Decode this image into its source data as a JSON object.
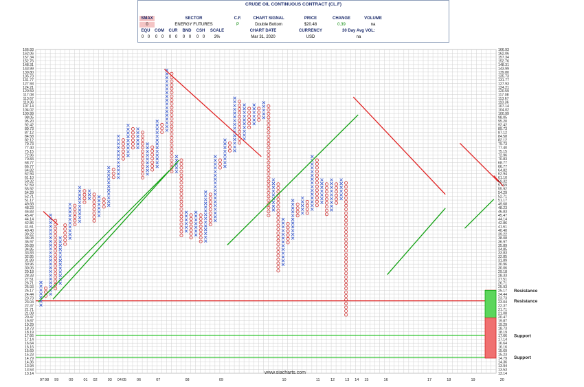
{
  "header": {
    "title": "CRUDE OIL CONTINUOUS CONTRACT (CL.F)",
    "smax_label": "SMAX",
    "smax_value": "0",
    "sector_label": "SECTOR",
    "sector_value": "ENERGY FUTURES",
    "cf_label": "C.F.",
    "cf_value": "P",
    "signal_label": "CHART SIGNAL",
    "signal_value": "Double Bottom",
    "price_label": "PRICE",
    "price_value": "$20.48",
    "change_label": "CHANGE",
    "change_value": "0.39",
    "volume_label": "VOLUME",
    "volume_value": "na",
    "equ_label": "EQU",
    "com_label": "COM",
    "cur_label": "CUR",
    "bnd_label": "BND",
    "csh_label": "CSH",
    "scale_label": "SCALE",
    "equ_value": "0",
    "com_value": "0",
    "cur_value": "0",
    "bnd_value": "0",
    "csh_value": "0",
    "scale_value": "3%",
    "extra_zeros": [
      "0",
      "0",
      "0",
      "0",
      "0"
    ],
    "date_label": "CHART DATE",
    "date_value": "Mar 31, 2020",
    "currency_label": "CURRENCY",
    "currency_value": "USD",
    "avgvol_label": "30 Day Avg VOL:",
    "avgvol_value": "na",
    "watermark": "www.siacharts.com"
  },
  "chart_data": {
    "type": "point-and-figure",
    "scale": "3% log",
    "y_ticks": [
      "166.93",
      "162.06",
      "157.34",
      "152.76",
      "148.31",
      "143.99",
      "139.80",
      "135.73",
      "131.77",
      "127.93",
      "124.21",
      "120.59",
      "117.08",
      "113.67",
      "110.36",
      "107.14",
      "104.02",
      "100.99",
      "98.05",
      "95.20",
      "92.42",
      "89.73",
      "87.12",
      "84.58",
      "82.12",
      "79.73",
      "77.40",
      "75.15",
      "72.96",
      "70.83",
      "68.77",
      "66.77",
      "64.82",
      "62.94",
      "61.10",
      "59.32",
      "57.59",
      "55.92",
      "54.29",
      "52.71",
      "51.17",
      "49.68",
      "48.23",
      "46.83",
      "45.47",
      "44.14",
      "42.86",
      "41.61",
      "40.40",
      "39.22",
      "38.08",
      "36.97",
      "35.89",
      "34.85",
      "33.83",
      "32.85",
      "31.89",
      "30.96",
      "30.06",
      "29.18",
      "28.33",
      "27.51",
      "26.71",
      "25.93",
      "25.17",
      "24.44",
      "23.73",
      "23.04",
      "22.37",
      "21.71",
      "21.08",
      "20.47",
      "19.87",
      "19.29",
      "18.73",
      "18.19",
      "17.66",
      "17.14",
      "16.64",
      "16.16",
      "15.69",
      "15.23",
      "14.79",
      "14.36",
      "13.94",
      "13.53",
      "13.14"
    ],
    "x_labels": [
      {
        "label": "97",
        "col": 0
      },
      {
        "label": "98",
        "col": 1
      },
      {
        "label": "99",
        "col": 3
      },
      {
        "label": "00",
        "col": 6
      },
      {
        "label": "01",
        "col": 9
      },
      {
        "label": "02",
        "col": 11
      },
      {
        "label": "03",
        "col": 14
      },
      {
        "label": "04",
        "col": 16
      },
      {
        "label": "05",
        "col": 17
      },
      {
        "label": "06",
        "col": 20
      },
      {
        "label": "07",
        "col": 24
      },
      {
        "label": "08",
        "col": 30
      },
      {
        "label": "09",
        "col": 37
      },
      {
        "label": "10",
        "col": 50
      },
      {
        "label": "11",
        "col": 57
      },
      {
        "label": "12",
        "col": 60
      },
      {
        "label": "13",
        "col": 63
      },
      {
        "label": "14",
        "col": 65
      },
      {
        "label": "15",
        "col": 67
      },
      {
        "label": "16",
        "col": 71
      },
      {
        "label": "17",
        "col": 80
      },
      {
        "label": "18",
        "col": 84
      },
      {
        "label": "19",
        "col": 89
      },
      {
        "label": "20",
        "col": 95
      }
    ],
    "columns": [
      {
        "t": "X",
        "lo": 22.1,
        "hi": 26.8
      },
      {
        "t": "O",
        "lo": 23.5,
        "hi": 25.6
      },
      {
        "t": "X",
        "lo": 24.0,
        "hi": 45.5
      },
      {
        "t": "O",
        "lo": 25.0,
        "hi": 43.5
      },
      {
        "t": "X",
        "lo": 26.0,
        "hi": 38.0
      },
      {
        "t": "O",
        "lo": 36.0,
        "hi": 42.0
      },
      {
        "t": "X",
        "lo": 37.5,
        "hi": 49.5
      },
      {
        "t": "O",
        "lo": 42.0,
        "hi": 49.0
      },
      {
        "t": "X",
        "lo": 43.0,
        "hi": 56.5
      },
      {
        "t": "O",
        "lo": 50.0,
        "hi": 55.0
      },
      {
        "t": "X",
        "lo": 51.0,
        "hi": 55.0
      },
      {
        "t": "O",
        "lo": 43.0,
        "hi": 53.5
      },
      {
        "t": "X",
        "lo": 44.0,
        "hi": 52.5
      },
      {
        "t": "O",
        "lo": 48.0,
        "hi": 51.5
      },
      {
        "t": "X",
        "lo": 49.0,
        "hi": 66.0
      },
      {
        "t": "O",
        "lo": 60.0,
        "hi": 65.0
      },
      {
        "t": "X",
        "lo": 61.0,
        "hi": 84.5
      },
      {
        "t": "O",
        "lo": 70.0,
        "hi": 82.0
      },
      {
        "t": "X",
        "lo": 71.0,
        "hi": 92.0
      },
      {
        "t": "O",
        "lo": 76.0,
        "hi": 89.5
      },
      {
        "t": "X",
        "lo": 77.0,
        "hi": 89.5
      },
      {
        "t": "O",
        "lo": 60.0,
        "hi": 87.0
      },
      {
        "t": "X",
        "lo": 61.0,
        "hi": 79.5
      },
      {
        "t": "O",
        "lo": 64.0,
        "hi": 77.5
      },
      {
        "t": "X",
        "lo": 65.0,
        "hi": 95.0
      },
      {
        "t": "O",
        "lo": 85.0,
        "hi": 92.5
      },
      {
        "t": "X",
        "lo": 86.0,
        "hi": 142.0
      },
      {
        "t": "O",
        "lo": 62.5,
        "hi": 138.0
      },
      {
        "t": "X",
        "lo": 63.5,
        "hi": 72.0
      },
      {
        "t": "O",
        "lo": 38.5,
        "hi": 70.0
      },
      {
        "t": "X",
        "lo": 39.5,
        "hi": 46.5
      },
      {
        "t": "O",
        "lo": 37.0,
        "hi": 45.5
      },
      {
        "t": "X",
        "lo": 38.0,
        "hi": 46.5
      },
      {
        "t": "O",
        "lo": 36.0,
        "hi": 45.5
      },
      {
        "t": "X",
        "lo": 37.0,
        "hi": 54.5
      },
      {
        "t": "O",
        "lo": 42.0,
        "hi": 53.5
      },
      {
        "t": "X",
        "lo": 43.0,
        "hi": 72.0
      },
      {
        "t": "O",
        "lo": 65.0,
        "hi": 70.0
      },
      {
        "t": "X",
        "lo": 66.0,
        "hi": 82.0
      },
      {
        "t": "O",
        "lo": 74.0,
        "hi": 80.0
      },
      {
        "t": "X",
        "lo": 75.0,
        "hi": 114.0
      },
      {
        "t": "O",
        "lo": 80.0,
        "hi": 111.0
      },
      {
        "t": "X",
        "lo": 81.0,
        "hi": 108.0
      },
      {
        "t": "O",
        "lo": 90.0,
        "hi": 105.0
      },
      {
        "t": "X",
        "lo": 91.0,
        "hi": 108.0
      },
      {
        "t": "O",
        "lo": 95.0,
        "hi": 105.0
      },
      {
        "t": "X",
        "lo": 96.0,
        "hi": 110.0
      },
      {
        "t": "O",
        "lo": 45.0,
        "hi": 107.0
      },
      {
        "t": "X",
        "lo": 46.0,
        "hi": 60.0
      },
      {
        "t": "O",
        "lo": 29.0,
        "hi": 58.0
      },
      {
        "t": "X",
        "lo": 30.0,
        "hi": 44.0
      },
      {
        "t": "O",
        "lo": 36.0,
        "hi": 42.5
      },
      {
        "t": "X",
        "lo": 37.0,
        "hi": 51.0
      },
      {
        "t": "O",
        "lo": 44.0,
        "hi": 49.5
      },
      {
        "t": "X",
        "lo": 45.0,
        "hi": 52.0
      },
      {
        "t": "O",
        "lo": 46.0,
        "hi": 50.5
      },
      {
        "t": "X",
        "lo": 47.0,
        "hi": 72.0
      },
      {
        "t": "O",
        "lo": 49.0,
        "hi": 70.0
      },
      {
        "t": "X",
        "lo": 50.0,
        "hi": 60.0
      },
      {
        "t": "O",
        "lo": 45.0,
        "hi": 58.0
      },
      {
        "t": "X",
        "lo": 46.0,
        "hi": 60.0
      },
      {
        "t": "O",
        "lo": 50.0,
        "hi": 58.0
      },
      {
        "t": "X",
        "lo": 51.0,
        "hi": 60.0
      },
      {
        "t": "O",
        "lo": 20.5,
        "hi": 58.5
      }
    ],
    "trend_lines": [
      {
        "color": "red",
        "from": {
          "col": 1,
          "y": 46.8
        },
        "to": {
          "col": 4,
          "y": 42.2
        }
      },
      {
        "color": "red",
        "from": {
          "col": 26,
          "y": 143.0
        },
        "to": {
          "col": 46,
          "y": 72.0
        }
      },
      {
        "color": "red",
        "from": {
          "col": 65,
          "y": 115.0
        },
        "to": {
          "col": 84,
          "y": 53.5
        }
      },
      {
        "color": "red",
        "from": {
          "col": 87,
          "y": 80.0
        },
        "to": {
          "col": 95,
          "y": 59.0
        }
      },
      {
        "color": "red",
        "from": {
          "col": 94,
          "y": 62.0
        },
        "to": {
          "col": 96,
          "y": 57.0
        }
      },
      {
        "color": "green",
        "from": {
          "col": 0,
          "y": 23.0
        },
        "to": {
          "col": 27,
          "y": 64.5
        }
      },
      {
        "color": "green",
        "from": {
          "col": 3,
          "y": 23.5
        },
        "to": {
          "col": 29,
          "y": 70.0
        }
      },
      {
        "color": "green",
        "from": {
          "col": 39,
          "y": 36.0
        },
        "to": {
          "col": 66,
          "y": 100.0
        }
      },
      {
        "color": "green",
        "from": {
          "col": 72,
          "y": 28.5
        },
        "to": {
          "col": 84,
          "y": 48.0
        }
      },
      {
        "color": "green",
        "from": {
          "col": 88,
          "y": 41.0
        },
        "to": {
          "col": 94,
          "y": 51.5
        }
      }
    ],
    "horizontal_levels": [
      {
        "label": "Resistance",
        "value": 25.2,
        "color": "red",
        "full": false
      },
      {
        "label": "Resistance",
        "value": 23.2,
        "color": "red",
        "full": true
      },
      {
        "label": "Support",
        "value": 17.7,
        "color": "green",
        "full": true
      },
      {
        "label": "Support",
        "value": 14.9,
        "color": "green",
        "full": true
      }
    ],
    "target_boxes": [
      {
        "color": "green",
        "from": 20.3,
        "to": 25.2
      },
      {
        "color": "red",
        "from": 14.8,
        "to": 20.3
      }
    ]
  }
}
